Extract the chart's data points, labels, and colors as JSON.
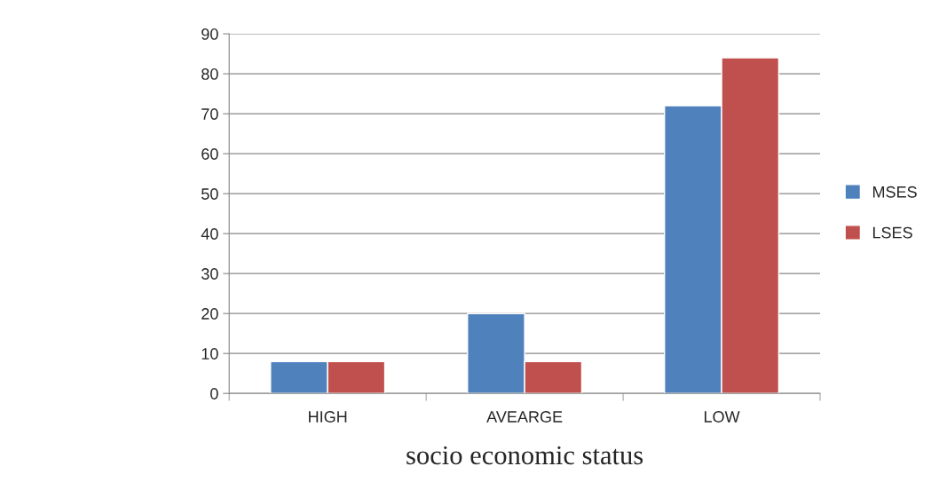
{
  "chart_data": {
    "type": "bar",
    "xlabel": "socio economic status",
    "categories": [
      "HIGH",
      "AVEARGE",
      "LOW"
    ],
    "series": [
      {
        "name": "MSES",
        "color": "#4f81bd",
        "values": [
          8,
          20,
          72
        ]
      },
      {
        "name": "LSES",
        "color": "#c0504d",
        "values": [
          8,
          8,
          84
        ]
      }
    ],
    "ylim": [
      0,
      90
    ],
    "yticks": [
      0,
      10,
      20,
      30,
      40,
      50,
      60,
      70,
      80,
      90
    ],
    "grid": "y",
    "legend": "right"
  }
}
